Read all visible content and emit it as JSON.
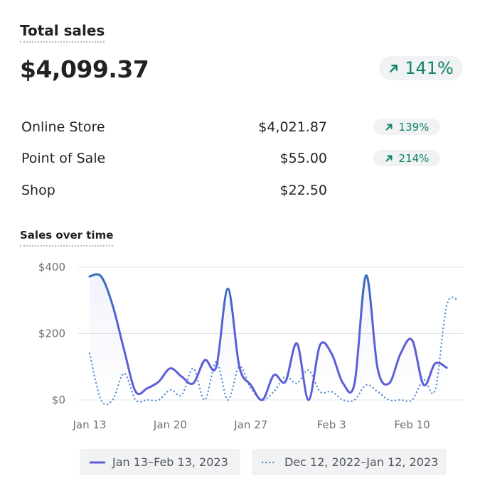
{
  "header": {
    "title": "Total sales",
    "total": "$4,099.37",
    "change": "141%"
  },
  "breakdown": [
    {
      "label": "Online Store",
      "value": "$4,021.87",
      "change": "139%"
    },
    {
      "label": "Point of Sale",
      "value": "$55.00",
      "change": "214%"
    },
    {
      "label": "Shop",
      "value": "$22.50",
      "change": ""
    }
  ],
  "colors": {
    "accent": "#108366",
    "current": "#5c5fd6",
    "current_peak": "#2c6fb6",
    "previous": "#5b8fd4"
  },
  "chart_data": {
    "type": "line",
    "title": "Sales over time",
    "ylim": [
      0,
      400
    ],
    "y_ticks": [
      "$400",
      "$200",
      "$0"
    ],
    "x_ticks": [
      "Jan 13",
      "Jan 20",
      "Jan 27",
      "Feb 3",
      "Feb 10"
    ],
    "series": [
      {
        "name": "Jan 13–Feb 13, 2023",
        "style": "solid",
        "values": [
          372,
          372,
          285,
          150,
          25,
          35,
          55,
          95,
          70,
          50,
          120,
          100,
          335,
          100,
          45,
          0,
          75,
          55,
          170,
          0,
          165,
          140,
          50,
          50,
          375,
          95,
          50,
          140,
          180,
          45,
          110,
          97
        ]
      },
      {
        "name": "Dec 12, 2022–Jan 12, 2023",
        "style": "dotted",
        "values": [
          140,
          0,
          0,
          80,
          0,
          0,
          0,
          30,
          15,
          95,
          0,
          115,
          0,
          100,
          35,
          0,
          25,
          70,
          50,
          90,
          25,
          25,
          0,
          0,
          45,
          25,
          0,
          0,
          0,
          60,
          30,
          285,
          300
        ]
      }
    ]
  },
  "legend": {
    "current": "Jan 13–Feb 13, 2023",
    "previous": "Dec 12, 2022–Jan 12, 2023"
  }
}
